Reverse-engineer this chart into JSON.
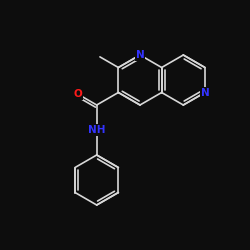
{
  "background": "#0d0d0d",
  "bond_color": "#d8d8d8",
  "N_color": "#3333ff",
  "O_color": "#ff1a1a",
  "bond_width": 1.2,
  "fontsize": 7.5,
  "figsize": [
    2.5,
    2.5
  ],
  "dpi": 100,
  "xlim": [
    0,
    10
  ],
  "ylim": [
    0,
    10
  ],
  "bl": 1.0
}
